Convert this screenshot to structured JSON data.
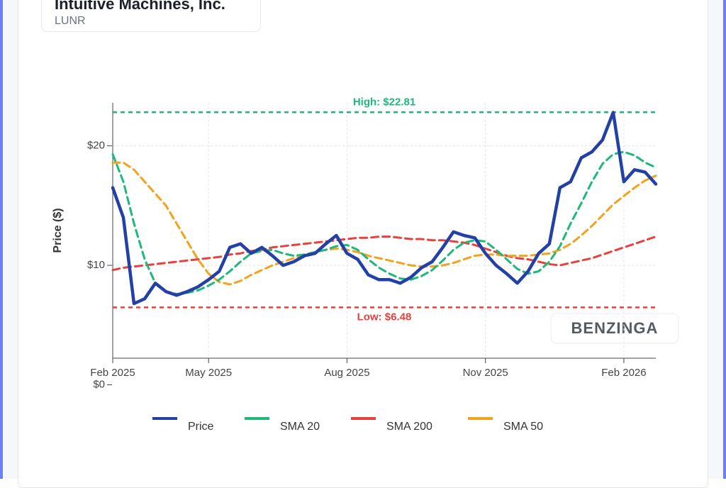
{
  "header": {
    "title": "Intuitive Machines, Inc.",
    "ticker": "LUNR"
  },
  "watermark": "BENZINGA",
  "chart_data": {
    "type": "line",
    "y_label": "Price ($)",
    "categories": [
      "Feb 2025",
      null,
      null,
      null,
      null,
      null,
      null,
      null,
      null,
      "May 2025",
      null,
      null,
      null,
      null,
      null,
      null,
      null,
      null,
      null,
      null,
      null,
      null,
      "Aug 2025",
      null,
      null,
      null,
      null,
      null,
      null,
      null,
      null,
      null,
      null,
      null,
      null,
      "Nov 2025",
      null,
      null,
      null,
      null,
      null,
      null,
      null,
      null,
      null,
      null,
      null,
      null,
      "Feb 2026",
      null,
      null,
      null
    ],
    "series": [
      {
        "name": "Price",
        "color": "#2340a6",
        "dash": "solid",
        "width": 4.5,
        "values": [
          16.5,
          14,
          6.8,
          7.2,
          8.5,
          7.8,
          7.5,
          7.8,
          8.2,
          8.8,
          9.5,
          11.5,
          11.8,
          11,
          11.5,
          10.8,
          10,
          10.3,
          10.8,
          11,
          11.8,
          12.5,
          11,
          10.5,
          9.2,
          8.8,
          8.8,
          8.5,
          9,
          9.8,
          10.3,
          11.5,
          12.8,
          12.5,
          12.3,
          11,
          10,
          9.3,
          8.5,
          9.5,
          11,
          11.8,
          16.5,
          17,
          19,
          19.5,
          20.5,
          22.8,
          17,
          18,
          17.8,
          16.8
        ]
      },
      {
        "name": "SMA 20",
        "color": "#1db97a",
        "dash": "dashed",
        "width": 3,
        "values": [
          19.3,
          17,
          13.5,
          10.5,
          8.5,
          7.8,
          7.6,
          7.7,
          7.9,
          8.3,
          8.8,
          9.5,
          10.3,
          11,
          11.2,
          11.3,
          11,
          10.8,
          10.9,
          11.1,
          11.3,
          11.6,
          11.7,
          11.3,
          10.5,
          9.8,
          9.3,
          8.9,
          8.8,
          9.1,
          9.6,
          10.4,
          11.3,
          11.9,
          12.1,
          12,
          11.3,
          10.5,
          9.7,
          9.3,
          9.5,
          10.3,
          11.6,
          13.5,
          15.2,
          17,
          18.5,
          19.3,
          19.5,
          19.2,
          18.6,
          18.2
        ]
      },
      {
        "name": "SMA 200",
        "color": "#e8413c",
        "dash": "dashed",
        "width": 3,
        "values": [
          9.6,
          9.8,
          9.9,
          10,
          10.1,
          10.2,
          10.3,
          10.4,
          10.5,
          10.6,
          10.7,
          10.9,
          11,
          11.2,
          11.3,
          11.5,
          11.6,
          11.7,
          11.8,
          11.9,
          12,
          12.1,
          12.2,
          12.3,
          12.3,
          12.4,
          12.4,
          12.3,
          12.2,
          12.2,
          12.1,
          12.1,
          12,
          11.9,
          11.7,
          11.4,
          11.1,
          10.8,
          10.6,
          10.5,
          10.3,
          10.1,
          10,
          10.2,
          10.4,
          10.6,
          10.9,
          11.2,
          11.5,
          11.8,
          12.1,
          12.4
        ]
      },
      {
        "name": "SMA 50",
        "color": "#f2a21b",
        "dash": "dashed",
        "width": 3,
        "values": [
          18.6,
          18.6,
          18,
          17,
          16,
          15,
          13.5,
          12,
          10.5,
          9.3,
          8.6,
          8.4,
          8.7,
          9.2,
          9.6,
          10,
          10.3,
          10.6,
          10.9,
          11.1,
          11.3,
          11.4,
          11.3,
          11.1,
          10.8,
          10.6,
          10.4,
          10.2,
          10,
          9.9,
          9.9,
          10,
          10.2,
          10.5,
          10.8,
          10.9,
          10.9,
          10.8,
          10.8,
          10.8,
          10.9,
          11,
          11.3,
          11.8,
          12.5,
          13.3,
          14.2,
          15.1,
          15.8,
          16.5,
          17.1,
          17.5
        ]
      }
    ],
    "reference_lines": [
      {
        "value": 22.81,
        "label": "High: $22.81",
        "color": "#1db97a"
      },
      {
        "value": 6.48,
        "label": "Low: $6.48",
        "color": "#e8413c"
      }
    ],
    "ylim": [
      0,
      23.6
    ],
    "yticks": [
      {
        "value": 0,
        "label": "$0"
      },
      {
        "value": 10,
        "label": "$10"
      },
      {
        "value": 20,
        "label": "$20"
      }
    ],
    "grid": true
  }
}
